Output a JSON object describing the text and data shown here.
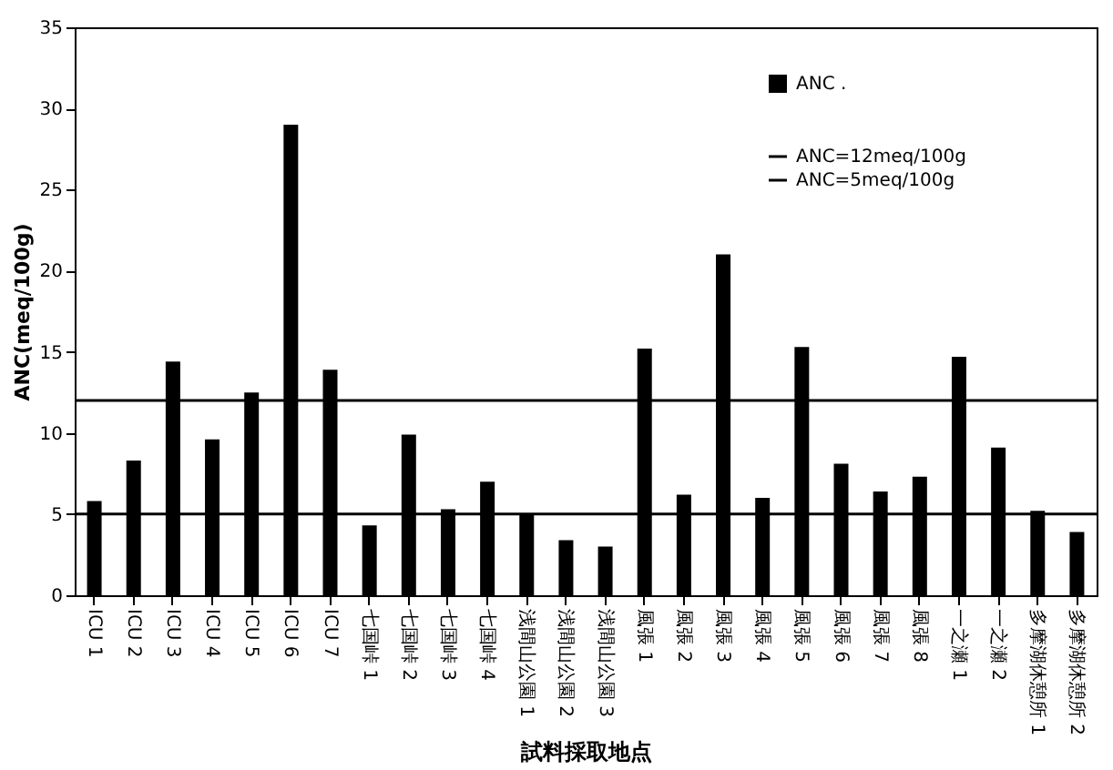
{
  "chart_data": {
    "type": "bar",
    "xlabel": "試料採取地点",
    "ylabel": "ANC(meq/100g)",
    "categories": [
      "ICU 1",
      "ICU 2",
      "ICU 3",
      "ICU 4",
      "ICU 5",
      "ICU 6",
      "ICU 7",
      "七国峠 1",
      "七国峠 2",
      "七国峠 3",
      "七国峠 4",
      "浅間山公園 1",
      "浅間山公園 2",
      "浅間山公園 3",
      "風張 1",
      "風張 2",
      "風張 3",
      "風張 4",
      "風張 5",
      "風張 6",
      "風張 7",
      "風張 8",
      "一之瀬 1",
      "一之瀬 2",
      "多摩湖休憩所 1",
      "多摩湖休憩所 2"
    ],
    "series": [
      {
        "name": "ANC .",
        "color": "#000000",
        "values": [
          5.8,
          8.3,
          14.4,
          9.6,
          12.5,
          29.0,
          13.9,
          4.3,
          9.9,
          5.3,
          7.0,
          5.0,
          3.4,
          3.0,
          15.2,
          6.2,
          21.0,
          6.0,
          15.3,
          8.1,
          6.4,
          7.3,
          14.7,
          9.1,
          5.2,
          3.9
        ]
      }
    ],
    "ylim": [
      0,
      35
    ],
    "yticks": [
      0,
      5,
      10,
      15,
      20,
      25,
      30,
      35
    ],
    "grid": false,
    "legend": "top right",
    "ref_lines": [
      {
        "axis": "y",
        "value": 12,
        "label": "ANC=12meq/100g",
        "color": "#000000"
      },
      {
        "axis": "y",
        "value": 5,
        "label": "ANC=5meq/100g",
        "color": "#000000"
      }
    ]
  }
}
